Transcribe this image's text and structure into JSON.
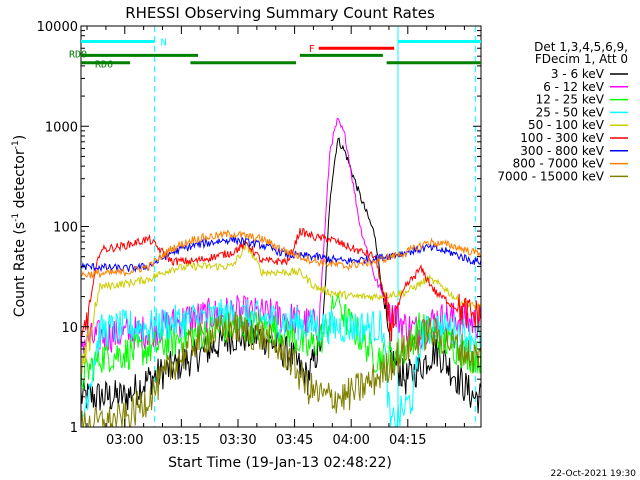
{
  "chart_data": {
    "type": "line",
    "title": "RHESSI Observing Summary Count Rates",
    "xlabel": "Start Time (19-Jan-13 02:48:22)",
    "ylabel_main": "Count Rate (s",
    "ylabel_sup1": "-1",
    "ylabel_mid": " detector",
    "ylabel_sup2": "-1",
    "ylabel_end": ")",
    "y_scale": "log",
    "ylim": [
      1,
      10000
    ],
    "xlim_minutes": [
      0,
      106
    ],
    "y_ticks": [
      {
        "value": 1,
        "label": "1"
      },
      {
        "value": 10,
        "label": "10"
      },
      {
        "value": 100,
        "label": "100"
      },
      {
        "value": 1000,
        "label": "1000"
      },
      {
        "value": 10000,
        "label": "10000"
      }
    ],
    "x_ticks": [
      {
        "value": 11.6,
        "label": "03:00"
      },
      {
        "value": 26.6,
        "label": "03:15"
      },
      {
        "value": 41.6,
        "label": "03:30"
      },
      {
        "value": 56.6,
        "label": "03:45"
      },
      {
        "value": 71.6,
        "label": "04:00"
      },
      {
        "value": 86.6,
        "label": "04:15"
      }
    ],
    "legend_header": [
      "Det 1,3,4,5,6,9,",
      "FDecim 1, Att 0"
    ],
    "series": [
      {
        "name": "3 - 6 keV",
        "color": "#000000",
        "baseline": [
          [
            0,
            2
          ],
          [
            12,
            2
          ],
          [
            18,
            3
          ],
          [
            30,
            5
          ],
          [
            40,
            8
          ],
          [
            48,
            8
          ],
          [
            56,
            5
          ],
          [
            60,
            3
          ],
          [
            64,
            8
          ],
          [
            66,
            200
          ],
          [
            68,
            750
          ],
          [
            70,
            550
          ],
          [
            74,
            200
          ],
          [
            78,
            80
          ],
          [
            82,
            5
          ],
          [
            86,
            3
          ],
          [
            90,
            4
          ],
          [
            94,
            6
          ],
          [
            100,
            3
          ],
          [
            104,
            2
          ]
        ]
      },
      {
        "name": "6 - 12 keV",
        "color": "#ff00ff",
        "baseline": [
          [
            0,
            7
          ],
          [
            5,
            8
          ],
          [
            18,
            9
          ],
          [
            28,
            12
          ],
          [
            40,
            14
          ],
          [
            50,
            13
          ],
          [
            56,
            12
          ],
          [
            63,
            10
          ],
          [
            66,
            600
          ],
          [
            68,
            1150
          ],
          [
            70,
            800
          ],
          [
            74,
            100
          ],
          [
            78,
            30
          ],
          [
            82,
            15
          ],
          [
            86,
            10
          ],
          [
            90,
            9
          ],
          [
            94,
            12
          ],
          [
            100,
            12
          ],
          [
            104,
            11
          ]
        ]
      },
      {
        "name": "12 - 25 keV",
        "color": "#00ff00",
        "baseline": [
          [
            0,
            3
          ],
          [
            5,
            5
          ],
          [
            18,
            6
          ],
          [
            28,
            8
          ],
          [
            40,
            10
          ],
          [
            48,
            10
          ],
          [
            55,
            9
          ],
          [
            60,
            6
          ],
          [
            64,
            8
          ],
          [
            66,
            12
          ],
          [
            68,
            20
          ],
          [
            70,
            12
          ],
          [
            74,
            8
          ],
          [
            78,
            5
          ],
          [
            82,
            5
          ],
          [
            86,
            6
          ],
          [
            90,
            10
          ],
          [
            94,
            8
          ],
          [
            100,
            6
          ],
          [
            104,
            5
          ]
        ]
      },
      {
        "name": "25 - 50 keV",
        "color": "#00ffff",
        "baseline": [
          [
            0,
            1
          ],
          [
            5,
            9
          ],
          [
            12,
            10
          ],
          [
            18,
            10
          ],
          [
            30,
            12
          ],
          [
            40,
            13
          ],
          [
            50,
            12
          ],
          [
            56,
            11
          ],
          [
            63,
            10
          ],
          [
            70,
            10
          ],
          [
            78,
            10
          ],
          [
            80,
            10
          ],
          [
            82,
            1
          ],
          [
            88,
            2
          ],
          [
            90,
            8
          ],
          [
            94,
            10
          ],
          [
            100,
            9
          ],
          [
            104,
            8
          ]
        ]
      },
      {
        "name": "50 - 100 keV",
        "color": "#cccc00",
        "baseline": [
          [
            0,
            3
          ],
          [
            5,
            25
          ],
          [
            12,
            27
          ],
          [
            18,
            30
          ],
          [
            24,
            38
          ],
          [
            30,
            40
          ],
          [
            40,
            40
          ],
          [
            44,
            65
          ],
          [
            48,
            35
          ],
          [
            55,
            35
          ],
          [
            58,
            35
          ],
          [
            62,
            25
          ],
          [
            66,
            22
          ],
          [
            72,
            20
          ],
          [
            78,
            20
          ],
          [
            86,
            22
          ],
          [
            92,
            30
          ],
          [
            96,
            25
          ],
          [
            100,
            18
          ],
          [
            104,
            16
          ]
        ]
      },
      {
        "name": "100 - 300 keV",
        "color": "#ff0000",
        "baseline": [
          [
            0,
            6
          ],
          [
            5,
            58
          ],
          [
            12,
            65
          ],
          [
            18,
            75
          ],
          [
            24,
            45
          ],
          [
            30,
            45
          ],
          [
            40,
            55
          ],
          [
            44,
            68
          ],
          [
            48,
            45
          ],
          [
            55,
            45
          ],
          [
            58,
            90
          ],
          [
            62,
            78
          ],
          [
            66,
            75
          ],
          [
            72,
            60
          ],
          [
            78,
            50
          ],
          [
            82,
            10
          ],
          [
            86,
            25
          ],
          [
            90,
            38
          ],
          [
            94,
            22
          ],
          [
            100,
            15
          ],
          [
            104,
            13
          ]
        ]
      },
      {
        "name": "300 - 800 keV",
        "color": "#0000ff",
        "baseline": [
          [
            0,
            40
          ],
          [
            12,
            38
          ],
          [
            18,
            40
          ],
          [
            24,
            55
          ],
          [
            30,
            65
          ],
          [
            40,
            75
          ],
          [
            48,
            65
          ],
          [
            55,
            52
          ],
          [
            62,
            50
          ],
          [
            70,
            45
          ],
          [
            78,
            48
          ],
          [
            86,
            55
          ],
          [
            92,
            62
          ],
          [
            98,
            55
          ],
          [
            104,
            45
          ]
        ]
      },
      {
        "name": "800 - 7000 keV",
        "color": "#ff8000",
        "baseline": [
          [
            0,
            33
          ],
          [
            12,
            35
          ],
          [
            18,
            40
          ],
          [
            24,
            60
          ],
          [
            30,
            75
          ],
          [
            40,
            85
          ],
          [
            48,
            75
          ],
          [
            55,
            55
          ],
          [
            62,
            45
          ],
          [
            70,
            40
          ],
          [
            78,
            45
          ],
          [
            86,
            55
          ],
          [
            92,
            70
          ],
          [
            98,
            65
          ],
          [
            104,
            55
          ]
        ]
      },
      {
        "name": "7000 - 15000 keV",
        "color": "#808000",
        "baseline": [
          [
            0,
            1
          ],
          [
            12,
            1.2
          ],
          [
            18,
            2
          ],
          [
            24,
            4
          ],
          [
            30,
            7
          ],
          [
            40,
            10
          ],
          [
            48,
            8
          ],
          [
            55,
            5
          ],
          [
            60,
            2.5
          ],
          [
            64,
            2
          ],
          [
            70,
            2
          ],
          [
            78,
            3
          ],
          [
            86,
            6
          ],
          [
            92,
            9
          ],
          [
            98,
            7
          ],
          [
            104,
            5
          ]
        ]
      }
    ],
    "flags": [
      {
        "name": "N",
        "color": "#00ffff",
        "y_level": 7000,
        "segments": [
          [
            0,
            19.5
          ],
          [
            84,
            106
          ]
        ]
      },
      {
        "name": "F",
        "color": "#ff0000",
        "y_level": 6000,
        "segments": [
          [
            63,
            83
          ]
        ]
      },
      {
        "name": "RD0",
        "color": "#008000",
        "y_level": 5100,
        "segments": [
          [
            0,
            31
          ],
          [
            58,
            80
          ]
        ]
      },
      {
        "name": "RD6",
        "color": "#008000",
        "y_level": 4300,
        "segments": [
          [
            0,
            13
          ],
          [
            29,
            57
          ],
          [
            81,
            106
          ]
        ]
      }
    ],
    "vertical_markers": [
      {
        "color": "#00ffff",
        "style": "dashed",
        "x_minute": 19.5
      },
      {
        "color": "#00ffff",
        "style": "solid",
        "x_minute": 84
      },
      {
        "color": "#00ffff",
        "style": "dashed",
        "x_minute": 104.5
      },
      {
        "color": "#00ffff",
        "style": "solid",
        "x_minute": 0
      }
    ]
  },
  "legend_title": "Det 1,3,4,5,6,9,",
  "legend_subtitle": "FDecim 1, Att 0",
  "date_stamp": "22-Oct-2021 19:30"
}
